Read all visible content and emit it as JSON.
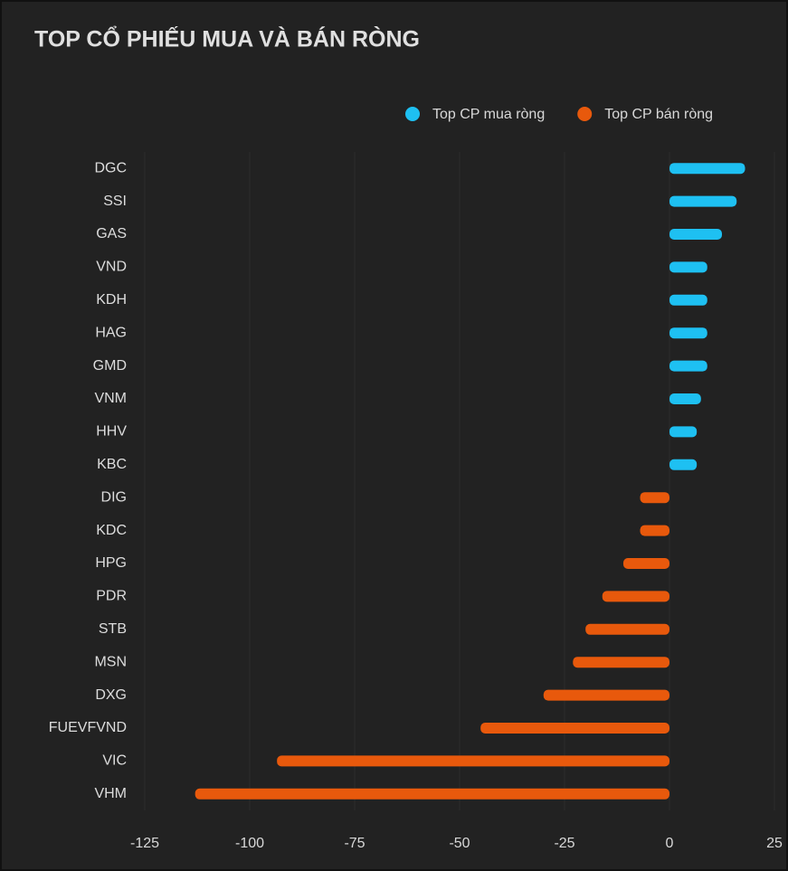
{
  "chart_data": {
    "type": "barh",
    "title": "TOP CỔ PHIẾU MUA VÀ BÁN RÒNG",
    "categories": [
      "DGC",
      "SSI",
      "GAS",
      "VND",
      "KDH",
      "HAG",
      "GMD",
      "VNM",
      "HHV",
      "KBC",
      "DIG",
      "KDC",
      "HPG",
      "PDR",
      "STB",
      "MSN",
      "DXG",
      "FUEVFVND",
      "VIC",
      "VHM"
    ],
    "series": [
      {
        "name": "Top CP mua ròng",
        "color": "#1ec0f2",
        "values": [
          18,
          16,
          12.5,
          9,
          9,
          9,
          9,
          7.5,
          6.5,
          6.5,
          null,
          null,
          null,
          null,
          null,
          null,
          null,
          null,
          null,
          null
        ]
      },
      {
        "name": "Top CP bán ròng",
        "color": "#e8590c",
        "values": [
          null,
          null,
          null,
          null,
          null,
          null,
          null,
          null,
          null,
          null,
          -7,
          -7,
          -11,
          -16,
          -20,
          -23,
          -30,
          -45,
          -93.5,
          -113
        ]
      }
    ],
    "xlim": [
      -125,
      25
    ],
    "xticks": [
      -125,
      -100,
      -75,
      -50,
      -25,
      0,
      25
    ],
    "grid": true
  }
}
